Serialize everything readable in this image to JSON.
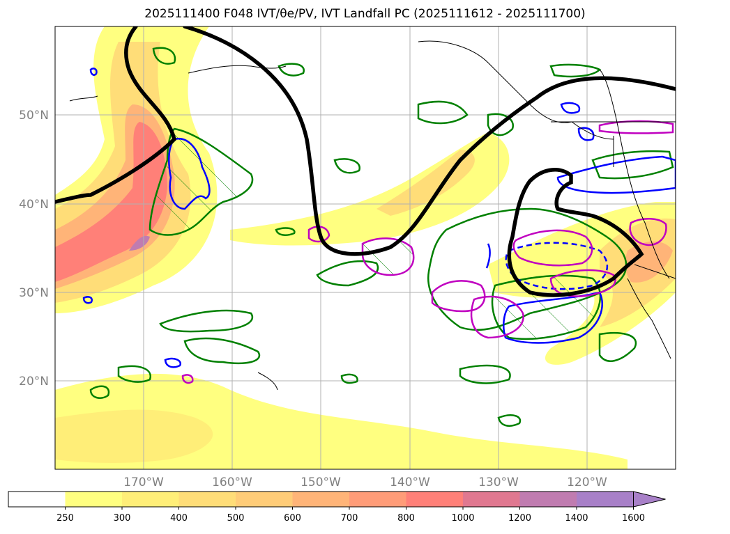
{
  "title": "2025111400 F048 IVT/θe/PV, IVT Landfall PC (2025111612 - 2025111700)",
  "map": {
    "lon_range": [
      -180,
      -110
    ],
    "lat_range": [
      10,
      60
    ],
    "lat_ticks": [
      {
        "lat": 20,
        "label": "20°N"
      },
      {
        "lat": 30,
        "label": "30°N"
      },
      {
        "lat": 40,
        "label": "40°N"
      },
      {
        "lat": 50,
        "label": "50°N"
      }
    ],
    "lon_ticks": [
      {
        "lon": -170,
        "label": "170°W"
      },
      {
        "lon": -160,
        "label": "160°W"
      },
      {
        "lon": -150,
        "label": "150°W"
      },
      {
        "lon": -140,
        "label": "140°W"
      },
      {
        "lon": -130,
        "label": "130°W"
      },
      {
        "lon": -120,
        "label": "120°W"
      }
    ],
    "grid": true
  },
  "colorbar": {
    "levels": [
      250,
      300,
      400,
      500,
      600,
      700,
      800,
      1000,
      1200,
      1400,
      1600
    ],
    "colors": [
      "#ffffff",
      "#ffff80",
      "#ffee78",
      "#ffdd78",
      "#ffcc78",
      "#ffb478",
      "#ff9c78",
      "#ff8078",
      "#e07890",
      "#c07cb0",
      "#a880c8"
    ],
    "extend": "max"
  },
  "colors": {
    "contour_black": "#000000",
    "contour_green": "#008000",
    "contour_blue": "#0000ff",
    "contour_magenta": "#c000c0",
    "coast": "#000000"
  }
}
